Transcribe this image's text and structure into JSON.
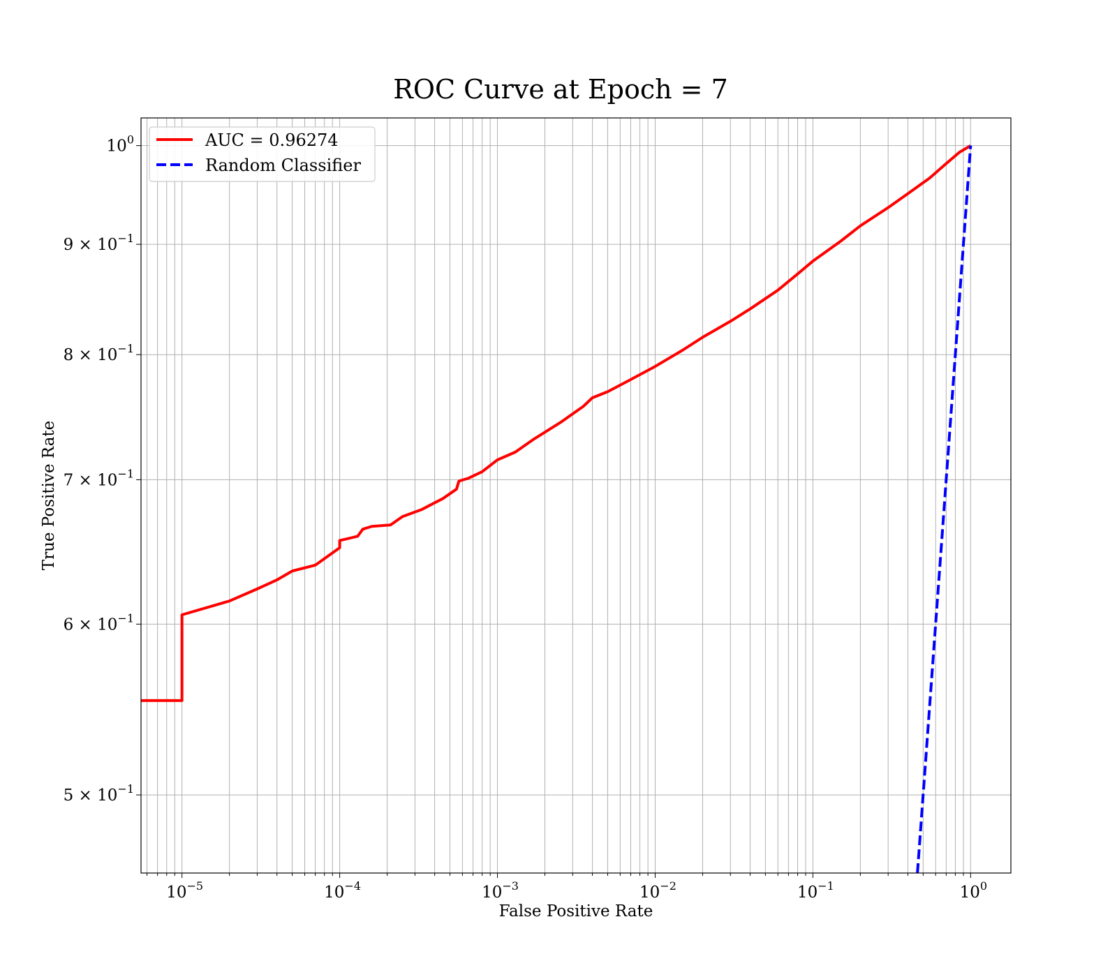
{
  "chart_data": {
    "type": "line",
    "title": "ROC Curve at Epoch = 7",
    "xlabel": "False Positive Rate",
    "ylabel": "True Positive Rate",
    "xscale": "log",
    "yscale": "log",
    "xlim": [
      5.5e-06,
      1.8
    ],
    "ylim": [
      0.46,
      1.03
    ],
    "grid": "major and minor",
    "legend": "top-left",
    "xticks": [
      {
        "value": 1e-05,
        "base": "10",
        "exp": "−5"
      },
      {
        "value": 0.0001,
        "base": "10",
        "exp": "−4"
      },
      {
        "value": 0.001,
        "base": "10",
        "exp": "−3"
      },
      {
        "value": 0.01,
        "base": "10",
        "exp": "−2"
      },
      {
        "value": 0.1,
        "base": "10",
        "exp": "−1"
      },
      {
        "value": 1,
        "base": "10",
        "exp": "0"
      }
    ],
    "yticks": [
      {
        "value": 0.5,
        "mant": "5 × 10",
        "exp": "−1"
      },
      {
        "value": 0.6,
        "mant": "6 × 10",
        "exp": "−1"
      },
      {
        "value": 0.7,
        "mant": "7 × 10",
        "exp": "−1"
      },
      {
        "value": 0.8,
        "mant": "8 × 10",
        "exp": "−1"
      },
      {
        "value": 0.9,
        "mant": "9 × 10",
        "exp": "−1"
      },
      {
        "value": 1.0,
        "mant": "10",
        "exp": "0"
      }
    ],
    "series": [
      {
        "name": "AUC = 0.96274",
        "color": "#ff0000",
        "style": "solid",
        "points": [
          [
            5.5e-06,
            0.553
          ],
          [
            1e-05,
            0.553
          ],
          [
            1e-05,
            0.606
          ],
          [
            2e-05,
            0.615
          ],
          [
            3e-05,
            0.623
          ],
          [
            4e-05,
            0.629
          ],
          [
            5e-05,
            0.635
          ],
          [
            7e-05,
            0.639
          ],
          [
            0.0001,
            0.651
          ],
          [
            0.0001,
            0.656
          ],
          [
            0.00013,
            0.659
          ],
          [
            0.00014,
            0.664
          ],
          [
            0.00016,
            0.666
          ],
          [
            0.00021,
            0.667
          ],
          [
            0.00025,
            0.673
          ],
          [
            0.00033,
            0.678
          ],
          [
            0.0004,
            0.683
          ],
          [
            0.00045,
            0.686
          ],
          [
            0.00055,
            0.693
          ],
          [
            0.00057,
            0.699
          ],
          [
            0.00065,
            0.701
          ],
          [
            0.0008,
            0.706
          ],
          [
            0.001,
            0.715
          ],
          [
            0.0013,
            0.721
          ],
          [
            0.0017,
            0.731
          ],
          [
            0.0025,
            0.744
          ],
          [
            0.0035,
            0.757
          ],
          [
            0.004,
            0.764
          ],
          [
            0.005,
            0.769
          ],
          [
            0.007,
            0.779
          ],
          [
            0.01,
            0.79
          ],
          [
            0.015,
            0.804
          ],
          [
            0.02,
            0.815
          ],
          [
            0.03,
            0.829
          ],
          [
            0.04,
            0.84
          ],
          [
            0.06,
            0.857
          ],
          [
            0.08,
            0.872
          ],
          [
            0.1,
            0.884
          ],
          [
            0.15,
            0.903
          ],
          [
            0.2,
            0.918
          ],
          [
            0.3,
            0.936
          ],
          [
            0.4,
            0.95
          ],
          [
            0.55,
            0.966
          ],
          [
            0.7,
            0.981
          ],
          [
            0.85,
            0.993
          ],
          [
            1.0,
            1.0
          ]
        ]
      },
      {
        "name": "Random Classifier",
        "color": "#0000ff",
        "style": "dashed",
        "points": [
          [
            0.46,
            0.46
          ],
          [
            1.0,
            1.0
          ]
        ]
      }
    ]
  }
}
